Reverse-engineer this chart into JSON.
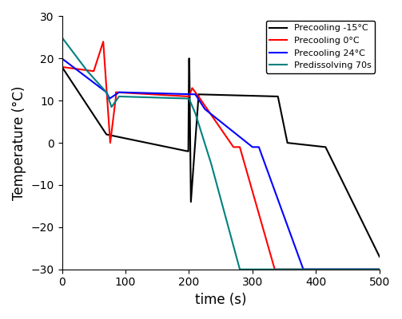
{
  "title": "",
  "xlabel": "time (s)",
  "ylabel": "Temperature (°C)",
  "xlim": [
    0,
    500
  ],
  "ylim": [
    -30,
    30
  ],
  "xticks": [
    0,
    100,
    200,
    300,
    400,
    500
  ],
  "yticks": [
    -30,
    -20,
    -10,
    0,
    10,
    20,
    30
  ],
  "legend": [
    {
      "label": "Precooling -15°C",
      "color": "black"
    },
    {
      "label": "Precooling 0°C",
      "color": "red"
    },
    {
      "label": "Precooling 24°C",
      "color": "blue"
    },
    {
      "label": "Predissolving 70s",
      "color": "teal"
    }
  ],
  "line_width": 1.5,
  "figsize": [
    5.03,
    4.0
  ],
  "dpi": 100
}
